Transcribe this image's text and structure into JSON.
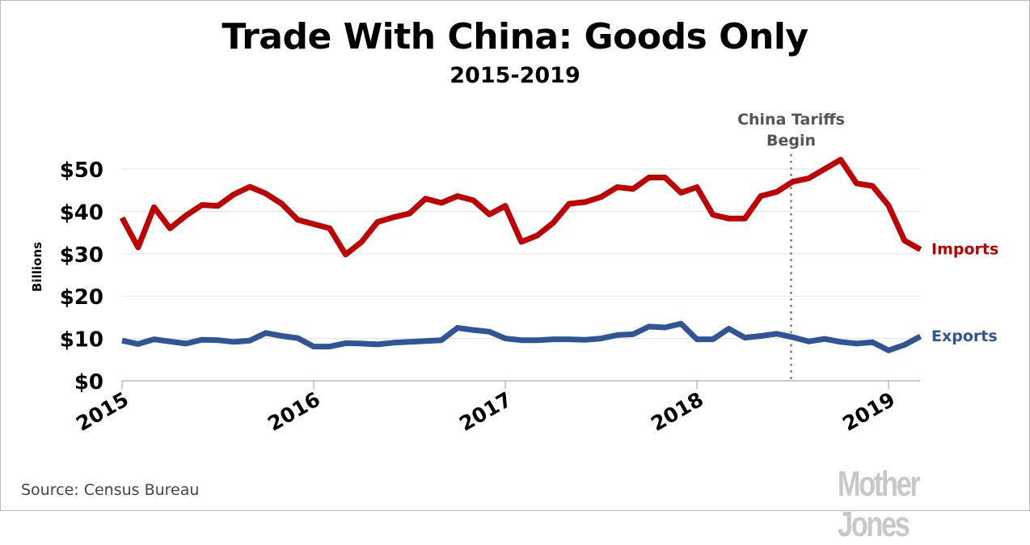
{
  "chart_data": {
    "type": "line",
    "title": "Trade With China: Goods Only",
    "subtitle": "2015-2019",
    "ylabel": "Billions",
    "xlabel": "",
    "ylim": [
      0,
      50
    ],
    "yticks": [
      "$0",
      "$10",
      "$20",
      "$30",
      "$40",
      "$50"
    ],
    "ytick_values": [
      0,
      10,
      20,
      30,
      40,
      50
    ],
    "xticks": [
      "2015",
      "2016",
      "2017",
      "2018",
      "2019"
    ],
    "x_start": "2015-01",
    "x_end": "2019-03",
    "frequency": "monthly",
    "grid": true,
    "annotation": {
      "lines": [
        "China Tariffs",
        "Begin"
      ],
      "x": "2018-07",
      "style": "dotted vertical line"
    },
    "series": [
      {
        "name": "Imports",
        "color": "#c00000",
        "values": [
          38.5,
          31.5,
          41,
          36,
          39,
          41.5,
          41.3,
          44,
          45.8,
          44.2,
          41.8,
          38,
          37,
          36,
          29.8,
          32.8,
          37.5,
          38.6,
          39.5,
          43,
          42,
          43.6,
          42.6,
          39.3,
          41.3,
          32.8,
          34.3,
          37.3,
          41.8,
          42.2,
          43.4,
          45.7,
          45.3,
          48,
          48,
          44.4,
          45.7,
          39.2,
          38.3,
          38.3,
          43.6,
          44.6,
          47,
          47.8,
          50,
          52.2,
          46.6,
          46,
          41.4,
          33.1,
          31
        ]
      },
      {
        "name": "Exports",
        "color": "#2f5597",
        "values": [
          9.5,
          8.7,
          9.8,
          9.3,
          8.8,
          9.7,
          9.6,
          9.2,
          9.5,
          11.3,
          10.6,
          10.1,
          8.1,
          8.1,
          8.9,
          8.8,
          8.6,
          9,
          9.2,
          9.4,
          9.6,
          12.5,
          12,
          11.6,
          10,
          9.6,
          9.6,
          9.8,
          9.8,
          9.7,
          10,
          10.8,
          11,
          12.8,
          12.6,
          13.5,
          9.8,
          9.8,
          12.3,
          10.2,
          10.6,
          11.1,
          10.3,
          9.3,
          9.9,
          9.2,
          8.8,
          9.1,
          7.2,
          8.5,
          10.5
        ]
      }
    ]
  },
  "footer": {
    "source": "Source:  Census Bureau",
    "logo": "Mother Jones"
  }
}
